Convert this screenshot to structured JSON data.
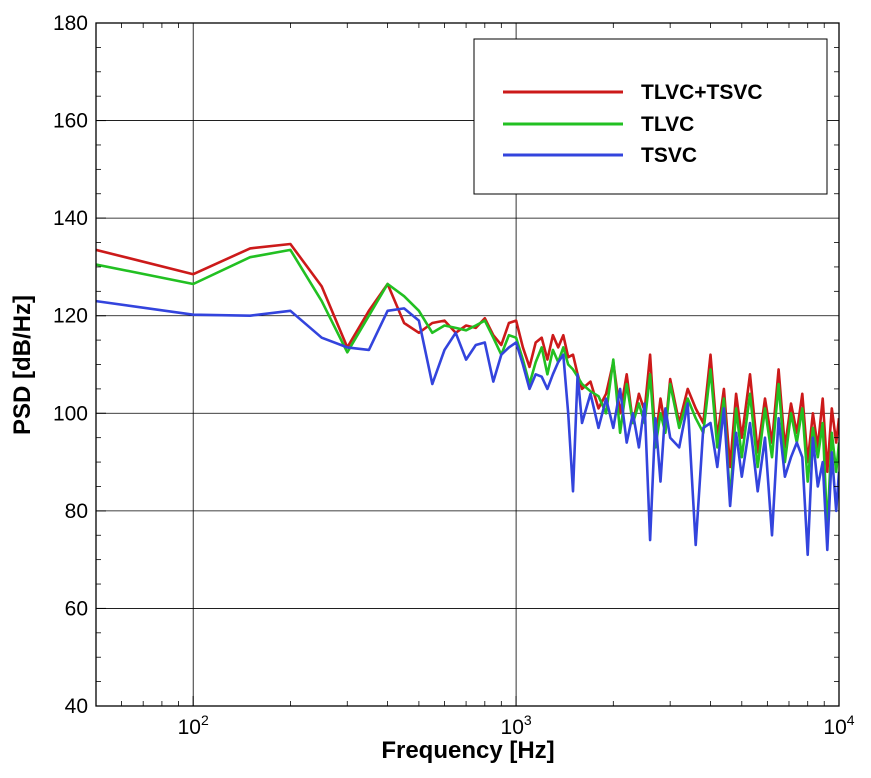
{
  "chart_data": {
    "type": "line",
    "title": "",
    "xlabel": "Frequency [Hz]",
    "ylabel": "PSD [dB/Hz]",
    "xscale": "log",
    "xlim": [
      50,
      10000
    ],
    "ylim": [
      40,
      180
    ],
    "grid": true,
    "legend_position": "top-right",
    "x_tick_labels": [
      {
        "base": "10",
        "exp": "2"
      },
      {
        "base": "10",
        "exp": "3"
      },
      {
        "base": "10",
        "exp": "4"
      }
    ],
    "y_tick_labels": [
      "40",
      "60",
      "80",
      "100",
      "120",
      "140",
      "160",
      "180"
    ],
    "series": [
      {
        "name": "TLVC+TSVC",
        "color": "#cc1a1a",
        "x": [
          50,
          100,
          150,
          200,
          250,
          300,
          350,
          400,
          450,
          500,
          550,
          600,
          650,
          700,
          750,
          800,
          850,
          900,
          950,
          1000,
          1050,
          1100,
          1150,
          1200,
          1250,
          1300,
          1350,
          1400,
          1450,
          1500,
          1550,
          1600,
          1700,
          1800,
          1900,
          2000,
          2100,
          2200,
          2300,
          2400,
          2500,
          2600,
          2700,
          2800,
          2900,
          3000,
          3200,
          3400,
          3600,
          3800,
          4000,
          4200,
          4400,
          4600,
          4800,
          5000,
          5300,
          5600,
          5900,
          6200,
          6500,
          6800,
          7100,
          7400,
          7700,
          8000,
          8300,
          8600,
          8900,
          9200,
          9500,
          9800,
          10000
        ],
        "y": [
          133.5,
          128.5,
          133.8,
          134.7,
          126,
          113.5,
          121,
          126.5,
          118.5,
          116.5,
          118.5,
          119,
          116.5,
          118,
          117.5,
          119.5,
          116,
          114,
          118.5,
          119,
          113.5,
          109.5,
          114.5,
          115.5,
          111,
          116,
          113.5,
          116,
          111.5,
          112,
          108,
          105,
          106.5,
          101,
          104,
          110.5,
          100,
          108,
          98,
          104,
          100.5,
          112,
          94.5,
          103,
          97,
          107,
          98,
          105,
          101,
          98,
          112,
          95,
          105,
          89,
          104,
          95,
          108,
          92,
          103,
          94,
          109,
          93,
          102,
          96,
          104,
          90,
          100,
          93,
          103,
          88,
          101,
          94,
          99
        ]
      },
      {
        "name": "TLVC",
        "color": "#22c022",
        "x": [
          50,
          100,
          150,
          200,
          250,
          300,
          350,
          400,
          450,
          500,
          550,
          600,
          650,
          700,
          750,
          800,
          850,
          900,
          950,
          1000,
          1050,
          1100,
          1150,
          1200,
          1250,
          1300,
          1350,
          1400,
          1450,
          1500,
          1550,
          1600,
          1700,
          1800,
          1900,
          2000,
          2100,
          2200,
          2300,
          2400,
          2500,
          2600,
          2700,
          2800,
          2900,
          3000,
          3200,
          3400,
          3600,
          3800,
          4000,
          4200,
          4400,
          4600,
          4800,
          5000,
          5300,
          5600,
          5900,
          6200,
          6500,
          6800,
          7100,
          7400,
          7700,
          8000,
          8300,
          8600,
          8900,
          9200,
          9500,
          9800,
          10000
        ],
        "y": [
          130.5,
          126.5,
          132,
          133.5,
          123,
          112.5,
          120,
          126.5,
          124,
          121,
          116.5,
          118,
          117.5,
          117,
          118,
          119,
          115.5,
          112,
          116,
          115.5,
          111,
          106,
          110.5,
          113.5,
          108,
          113,
          110.5,
          113.5,
          110,
          109,
          107.5,
          106,
          104.5,
          103.5,
          100,
          111,
          96,
          106,
          98,
          102,
          98,
          108,
          93,
          100,
          96,
          106,
          97,
          103,
          99,
          96,
          109,
          93,
          103,
          82,
          101,
          91,
          104,
          89,
          101,
          91,
          106,
          90,
          100,
          94,
          101,
          86,
          97,
          91,
          98,
          76,
          96,
          88,
          94
        ]
      },
      {
        "name": "TSVC",
        "color": "#3344dd",
        "x": [
          50,
          100,
          150,
          200,
          250,
          300,
          350,
          400,
          450,
          500,
          550,
          600,
          650,
          700,
          750,
          800,
          850,
          900,
          950,
          1000,
          1050,
          1100,
          1150,
          1200,
          1250,
          1300,
          1350,
          1400,
          1450,
          1500,
          1550,
          1600,
          1700,
          1800,
          1900,
          2000,
          2100,
          2200,
          2300,
          2400,
          2500,
          2600,
          2700,
          2800,
          2900,
          3000,
          3200,
          3400,
          3600,
          3800,
          4000,
          4200,
          4400,
          4600,
          4800,
          5000,
          5300,
          5600,
          5900,
          6200,
          6500,
          6800,
          7100,
          7400,
          7700,
          8000,
          8300,
          8600,
          8900,
          9200,
          9500,
          9800,
          10000
        ],
        "y": [
          123,
          120.2,
          120,
          121,
          115.5,
          113.5,
          113,
          121,
          121.5,
          119,
          106,
          113,
          116.5,
          111,
          114,
          114.5,
          106.5,
          112,
          113.5,
          114.5,
          110,
          105,
          108,
          107.5,
          105,
          108,
          110.5,
          112,
          100,
          84,
          108,
          98,
          104,
          97,
          103,
          97,
          105,
          94,
          100,
          93,
          102,
          74,
          99,
          86,
          101,
          95,
          93,
          102,
          73,
          97,
          98,
          89,
          101,
          81,
          96,
          87,
          98,
          84,
          95,
          75,
          99,
          87,
          91,
          94,
          91,
          71,
          95,
          85,
          90,
          72,
          92,
          80,
          88
        ]
      }
    ]
  }
}
